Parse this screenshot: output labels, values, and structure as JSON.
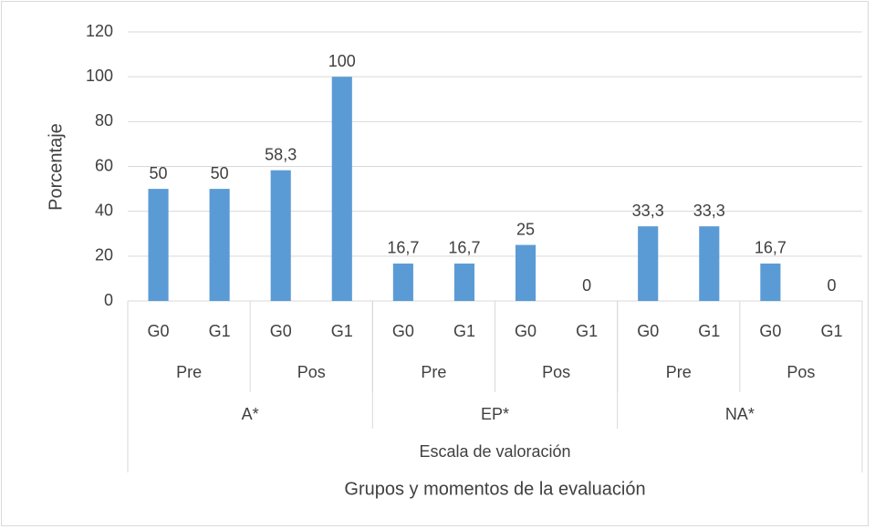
{
  "chart_data": {
    "type": "bar",
    "ylabel": "Porcentaje",
    "xlabel": "Grupos y momentos de la evaluación",
    "scale_title": "Escala de valoración",
    "categories": [
      "G0",
      "G1",
      "G0",
      "G1",
      "G0",
      "G1",
      "G0",
      "G1",
      "G0",
      "G1",
      "G0",
      "G1"
    ],
    "moments": [
      "Pre",
      "Pos",
      "Pre",
      "Pos",
      "Pre",
      "Pos"
    ],
    "scales": [
      "A*",
      "EP*",
      "NA*"
    ],
    "values": [
      50,
      50,
      58.3,
      100,
      16.7,
      16.7,
      25,
      0,
      33.3,
      33.3,
      16.7,
      0
    ],
    "value_labels": [
      "50",
      "50",
      "58,3",
      "100",
      "16,7",
      "16,7",
      "25",
      "0",
      "33,3",
      "33,3",
      "16,7",
      "0"
    ],
    "color": "#5b9bd5",
    "ylim": [
      0,
      120
    ],
    "yticks": [
      0,
      20,
      40,
      60,
      80,
      100,
      120
    ],
    "grid": true
  }
}
